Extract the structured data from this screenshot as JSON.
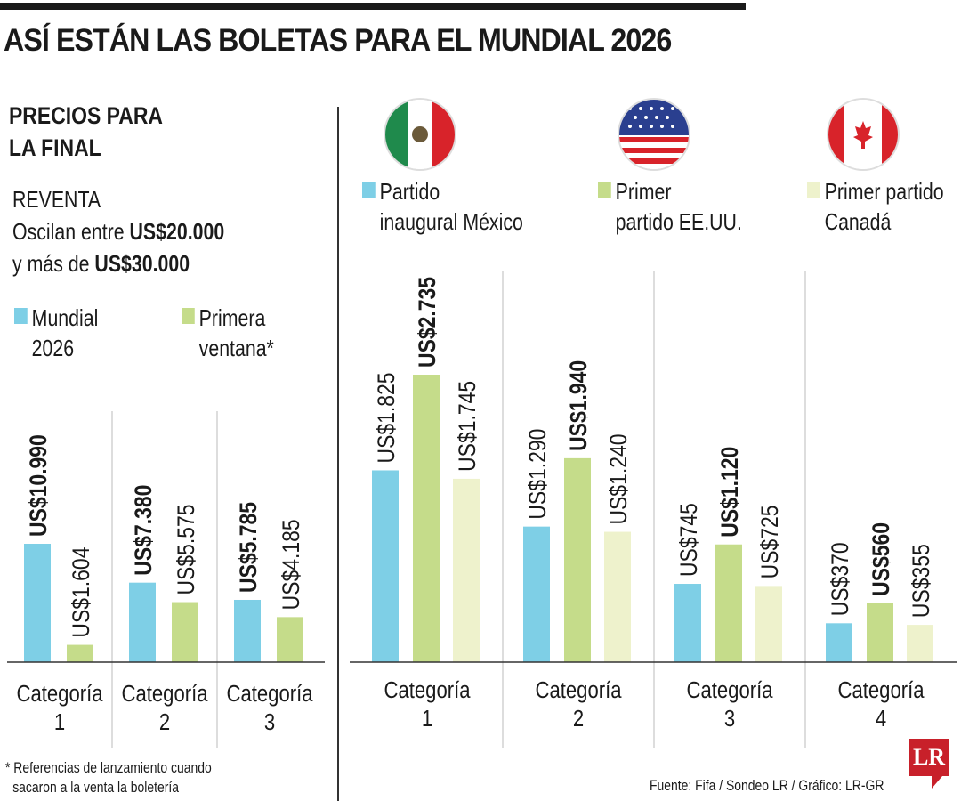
{
  "title": "ASÍ ESTÁN LAS BOLETAS PARA EL MUNDIAL 2026",
  "left_panel": {
    "subtitle_line1": "PRECIOS PARA",
    "subtitle_line2": "LA FINAL",
    "resale_label": "REVENTA",
    "resale_line1_pre": "Oscilan entre ",
    "resale_line1_bold": "US$20.000",
    "resale_line2_pre": "y más de ",
    "resale_line2_bold": "US$30.000",
    "footnote_line1": "* Referencias de lanzamiento cuando",
    "footnote_line2": "sacaron a la venta la boletería"
  },
  "right_panel": {
    "flags": [
      "mexico-flag",
      "usa-flag",
      "canada-flag"
    ]
  },
  "source": "Fuente: Fifa / Sondeo LR / Gráfico: LR-GR",
  "logo": "LR",
  "chart_data": [
    {
      "type": "bar",
      "categories": [
        [
          "Categoría",
          "1"
        ],
        [
          "Categoría",
          "2"
        ],
        [
          "Categoría",
          "3"
        ]
      ],
      "series": [
        {
          "name": "Mundial 2026",
          "name_lines": [
            "Mundial",
            "2026"
          ],
          "color": "#7ecfe6",
          "values": [
            10990,
            7380,
            5785
          ],
          "labels": [
            "US$10.990",
            "US$7.380",
            "US$5.785"
          ],
          "bold": true
        },
        {
          "name": "Primera ventana*",
          "name_lines": [
            "Primera",
            "ventana*"
          ],
          "color": "#c5dc8a",
          "values": [
            1604,
            5575,
            4185
          ],
          "labels": [
            "US$1.604",
            "US$5.575",
            "US$4.185"
          ],
          "bold": false
        }
      ]
    },
    {
      "type": "bar",
      "categories": [
        [
          "Categoría",
          "1"
        ],
        [
          "Categoría",
          "2"
        ],
        [
          "Categoría",
          "3"
        ],
        [
          "Categoría",
          "4"
        ]
      ],
      "series": [
        {
          "name": "Partido inaugural México",
          "name_lines": [
            "Partido",
            "inaugural México"
          ],
          "color": "#7ecfe6",
          "values": [
            1825,
            1290,
            745,
            370
          ],
          "labels": [
            "US$1.825",
            "US$1.290",
            "US$745",
            "US$370"
          ],
          "bold": false
        },
        {
          "name": "Primer partido EE.UU.",
          "name_lines": [
            "Primer",
            "partido EE.UU."
          ],
          "color": "#c5dc8a",
          "values": [
            2735,
            1940,
            1120,
            560
          ],
          "labels": [
            "US$2.735",
            "US$1.940",
            "US$1.120",
            "US$560"
          ],
          "bold": true
        },
        {
          "name": "Primer partido Canadá",
          "name_lines": [
            "Primer partido",
            "Canadá"
          ],
          "color": "#eef2cc",
          "values": [
            1745,
            1240,
            725,
            355
          ],
          "labels": [
            "US$1.745",
            "US$1.240",
            "US$725",
            "US$355"
          ],
          "bold": false
        }
      ]
    }
  ]
}
